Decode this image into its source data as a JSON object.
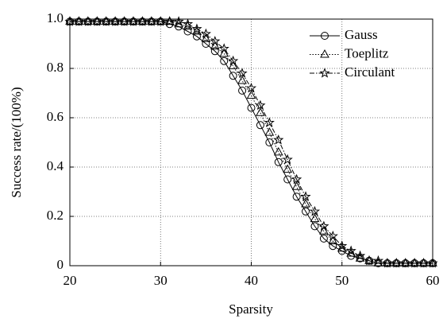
{
  "chart_data": {
    "type": "line",
    "xlabel": "Sparsity",
    "ylabel": "Success rate/(100%)",
    "x": [
      20,
      21,
      22,
      23,
      24,
      25,
      26,
      27,
      28,
      29,
      30,
      31,
      32,
      33,
      34,
      35,
      36,
      37,
      38,
      39,
      40,
      41,
      42,
      43,
      44,
      45,
      46,
      47,
      48,
      49,
      50,
      51,
      52,
      53,
      54,
      55,
      56,
      57,
      58,
      59,
      60
    ],
    "series": [
      {
        "name": "Gauss",
        "color": "#000000",
        "linestyle": "solid",
        "marker": "circle",
        "values": [
          0.99,
          0.99,
          0.99,
          0.99,
          0.99,
          0.99,
          0.99,
          0.99,
          0.99,
          0.99,
          0.99,
          0.98,
          0.97,
          0.95,
          0.93,
          0.9,
          0.87,
          0.83,
          0.77,
          0.71,
          0.64,
          0.57,
          0.5,
          0.42,
          0.35,
          0.28,
          0.22,
          0.16,
          0.11,
          0.08,
          0.06,
          0.04,
          0.03,
          0.02,
          0.01,
          0.01,
          0.01,
          0.01,
          0.01,
          0.01,
          0.01
        ]
      },
      {
        "name": "Toeplitz",
        "color": "#000000",
        "linestyle": "dotted",
        "marker": "triangle",
        "values": [
          0.99,
          0.99,
          0.99,
          0.99,
          0.99,
          0.99,
          0.99,
          0.99,
          0.99,
          0.99,
          0.99,
          0.99,
          0.98,
          0.97,
          0.95,
          0.92,
          0.89,
          0.86,
          0.81,
          0.75,
          0.69,
          0.62,
          0.54,
          0.46,
          0.39,
          0.32,
          0.25,
          0.19,
          0.14,
          0.1,
          0.07,
          0.05,
          0.03,
          0.02,
          0.01,
          0.01,
          0.01,
          0.01,
          0.01,
          0.01,
          0.01
        ]
      },
      {
        "name": "Circulant",
        "color": "#000000",
        "linestyle": "dashdot",
        "marker": "star",
        "values": [
          0.99,
          0.99,
          0.99,
          0.99,
          0.99,
          0.99,
          0.99,
          0.99,
          0.99,
          0.99,
          0.99,
          0.99,
          0.99,
          0.98,
          0.96,
          0.94,
          0.91,
          0.88,
          0.83,
          0.78,
          0.72,
          0.65,
          0.58,
          0.51,
          0.43,
          0.35,
          0.28,
          0.22,
          0.16,
          0.12,
          0.08,
          0.06,
          0.04,
          0.02,
          0.02,
          0.01,
          0.01,
          0.01,
          0.01,
          0.01,
          0.01
        ]
      }
    ],
    "xlim": [
      20,
      60
    ],
    "xticks": [
      20,
      30,
      40,
      50,
      60
    ],
    "ylim": [
      0,
      1
    ],
    "yticks": [
      0,
      0.2,
      0.4,
      0.6,
      0.8,
      {
        "value": 1,
        "label": "1.0"
      }
    ],
    "grid": true,
    "legend": "upper right"
  }
}
